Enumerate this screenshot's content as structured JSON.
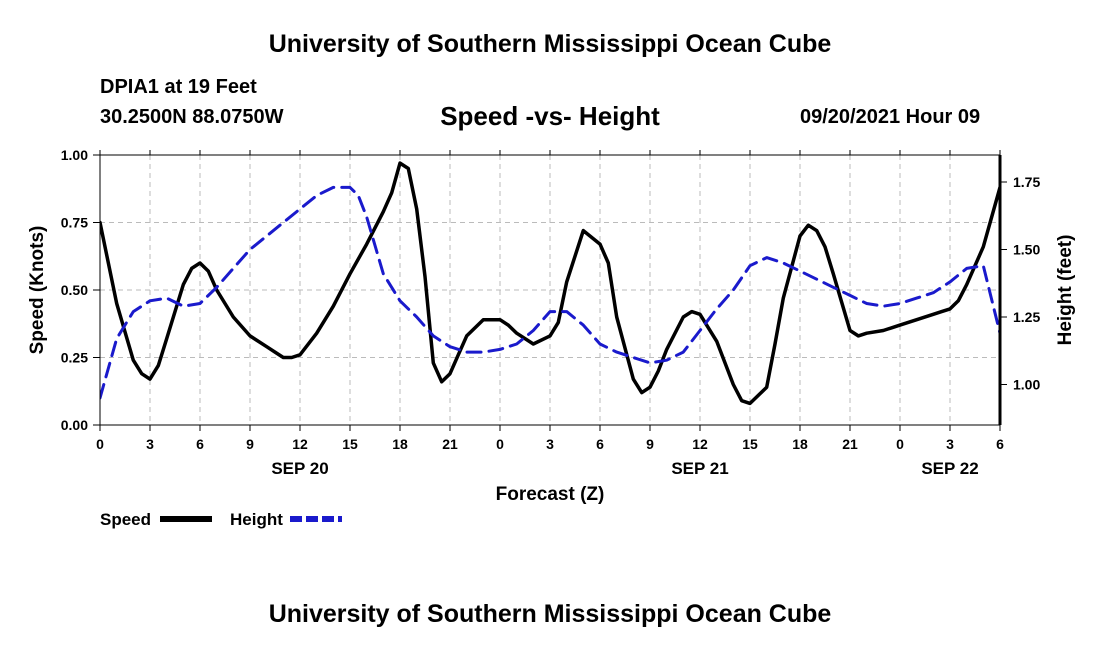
{
  "header": {
    "top_title": "University of Southern Mississippi Ocean Cube",
    "station": "DPIA1 at 19 Feet",
    "coords": "30.2500N  88.0750W",
    "chart_title": "Speed -vs- Height",
    "datestamp": "09/20/2021 Hour 09"
  },
  "footer": {
    "bottom_title": "University of Southern Mississippi Ocean Cube"
  },
  "colors": {
    "speed": "#000000",
    "height": "#1a1acc",
    "grid": "#bbbbbb"
  },
  "chart_data": {
    "type": "line",
    "xlabel": "Forecast (Z)",
    "ylabel_left": "Speed (Knots)",
    "ylabel_right": "Height (feet)",
    "xlim": [
      0,
      54
    ],
    "ylim_left": [
      0,
      1.0
    ],
    "ylim_right": [
      0.85,
      1.85
    ],
    "x_tick_labels": [
      "0",
      "3",
      "6",
      "9",
      "12",
      "15",
      "18",
      "21",
      "0",
      "3",
      "6",
      "9",
      "12",
      "15",
      "18",
      "21",
      "0",
      "3",
      "6"
    ],
    "left_tick_labels": [
      "0.00",
      "0.25",
      "0.50",
      "0.75",
      "1.00"
    ],
    "left_tick_values": [
      0,
      0.25,
      0.5,
      0.75,
      1.0
    ],
    "right_tick_labels": [
      "1.00",
      "1.25",
      "1.50",
      "1.75"
    ],
    "right_tick_values": [
      1.0,
      1.25,
      1.5,
      1.75
    ],
    "date_labels": [
      {
        "text": "SEP 20",
        "x": 12
      },
      {
        "text": "SEP 21",
        "x": 36
      },
      {
        "text": "SEP 22",
        "x": 51
      }
    ],
    "grid": true,
    "legend": [
      {
        "name": "Speed",
        "style": "solid"
      },
      {
        "name": "Height",
        "style": "dashed"
      }
    ],
    "series": [
      {
        "name": "Speed",
        "axis": "left",
        "x": [
          0,
          1,
          2,
          2.5,
          3,
          3.5,
          4,
          5,
          5.5,
          6,
          6.5,
          7,
          8,
          9,
          10,
          10.5,
          11,
          11.5,
          12,
          13,
          14,
          15,
          16,
          17,
          17.5,
          18,
          18.5,
          19,
          19.5,
          20,
          20.5,
          21,
          21.5,
          22,
          23,
          23.5,
          24,
          24.5,
          25,
          26,
          27,
          27.5,
          28,
          29,
          30,
          30.5,
          31,
          32,
          32.5,
          33,
          33.5,
          34,
          35,
          35.5,
          36,
          37,
          38,
          38.5,
          39,
          40,
          40.5,
          41,
          42,
          42.5,
          43,
          43.5,
          44,
          45,
          45.5,
          46,
          47,
          47.5,
          48,
          49,
          50,
          50.5,
          51,
          51.5,
          52,
          53,
          54
        ],
        "y": [
          0.75,
          0.45,
          0.24,
          0.19,
          0.17,
          0.22,
          0.32,
          0.52,
          0.58,
          0.6,
          0.57,
          0.5,
          0.4,
          0.33,
          0.29,
          0.27,
          0.25,
          0.25,
          0.26,
          0.34,
          0.44,
          0.56,
          0.67,
          0.79,
          0.86,
          0.97,
          0.95,
          0.8,
          0.55,
          0.23,
          0.16,
          0.19,
          0.26,
          0.33,
          0.39,
          0.39,
          0.39,
          0.37,
          0.34,
          0.3,
          0.33,
          0.38,
          0.53,
          0.72,
          0.67,
          0.6,
          0.4,
          0.17,
          0.12,
          0.14,
          0.2,
          0.28,
          0.4,
          0.42,
          0.41,
          0.31,
          0.15,
          0.09,
          0.08,
          0.14,
          0.3,
          0.47,
          0.7,
          0.74,
          0.72,
          0.66,
          0.56,
          0.35,
          0.33,
          0.34,
          0.35,
          0.36,
          0.37,
          0.39,
          0.41,
          0.42,
          0.43,
          0.46,
          0.52,
          0.66,
          0.88
        ]
      },
      {
        "name": "Height",
        "axis": "right",
        "x": [
          0,
          1,
          2,
          3,
          4,
          5,
          6,
          7,
          8,
          9,
          10,
          11,
          12,
          13,
          14,
          15,
          15.5,
          16,
          17,
          18,
          19,
          20,
          21,
          22,
          23,
          24,
          25,
          26,
          27,
          28,
          29,
          30,
          31,
          32,
          33,
          34,
          35,
          36,
          37,
          38,
          39,
          40,
          41,
          42,
          43,
          44,
          45,
          46,
          47,
          48,
          49,
          50,
          51,
          52,
          53,
          54
        ],
        "y": [
          0.95,
          1.17,
          1.27,
          1.31,
          1.32,
          1.29,
          1.3,
          1.36,
          1.43,
          1.5,
          1.55,
          1.6,
          1.65,
          1.7,
          1.73,
          1.73,
          1.7,
          1.62,
          1.41,
          1.31,
          1.25,
          1.18,
          1.14,
          1.12,
          1.12,
          1.13,
          1.15,
          1.2,
          1.27,
          1.27,
          1.22,
          1.15,
          1.12,
          1.1,
          1.08,
          1.09,
          1.12,
          1.2,
          1.28,
          1.35,
          1.44,
          1.47,
          1.45,
          1.42,
          1.39,
          1.36,
          1.33,
          1.3,
          1.29,
          1.3,
          1.32,
          1.34,
          1.38,
          1.43,
          1.44,
          1.19
        ]
      }
    ]
  }
}
